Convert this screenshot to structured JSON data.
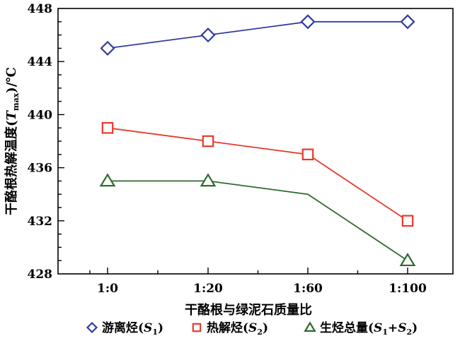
{
  "chart_data": {
    "type": "line",
    "categories": [
      "1:0",
      "1:20",
      "1:60",
      "1:100"
    ],
    "series": [
      {
        "name": "游离烃(S1)",
        "legend_main": "游离烃(",
        "legend_var": "S",
        "legend_sub": "1",
        "legend_tail": ")",
        "values": [
          445,
          446,
          447,
          447
        ],
        "color": "#2f3d9e",
        "marker": "diamond",
        "markers_at": [
          0,
          1,
          2,
          3
        ]
      },
      {
        "name": "热解烃(S2)",
        "legend_main": "热解烃(",
        "legend_var": "S",
        "legend_sub": "2",
        "legend_tail": ")",
        "values": [
          439,
          438,
          437,
          432
        ],
        "color": "#e8392c",
        "marker": "square",
        "markers_at": [
          0,
          1,
          2,
          3
        ]
      },
      {
        "name": "生烃总量(S1+S2)",
        "legend_main": "生烃总量(",
        "legend_var": "S",
        "legend_sub": "1",
        "legend_mid": "+",
        "legend_var2": "S",
        "legend_sub2": "2",
        "legend_tail": ")",
        "values": [
          435,
          435,
          434,
          429
        ],
        "color": "#2e6b2e",
        "marker": "triangle",
        "markers_at": [
          0,
          1,
          3
        ]
      }
    ],
    "xlabel": "干酪根与绿泥石质量比",
    "ylabel_main": "干酪根热解温度(",
    "ylabel_var": "T",
    "ylabel_sub": "max",
    "ylabel_tail": ")/℃",
    "ylim": [
      428,
      448
    ],
    "yticks": [
      428,
      432,
      436,
      440,
      444,
      448
    ],
    "grid": false,
    "legend_position": "bottom"
  }
}
